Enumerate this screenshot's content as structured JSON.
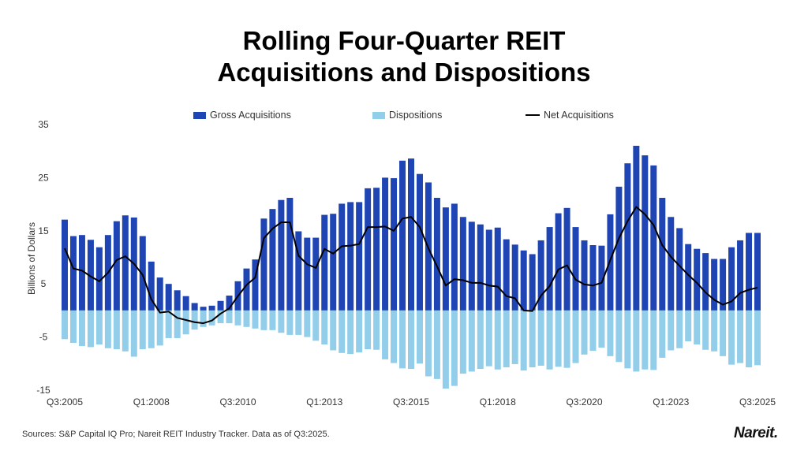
{
  "chart_data": {
    "type": "bar",
    "title_line1": "Rolling Four-Quarter REIT",
    "title_line2": "Acquisitions and Dispositions",
    "ylabel": "Billions of Dollars",
    "ylim": [
      -15,
      35
    ],
    "y_ticks": [
      35,
      25,
      15,
      5,
      -5,
      -15
    ],
    "x_tick_labels": [
      "Q3:2005",
      "Q1:2008",
      "Q3:2010",
      "Q1:2013",
      "Q3:2015",
      "Q1:2018",
      "Q3:2020",
      "Q1:2023",
      "Q3:2025"
    ],
    "x_first": "Q3:2005",
    "x_last": "Q3:2025",
    "frequency": "quarterly",
    "legend_position": "top",
    "grid": false,
    "series": [
      {
        "name": "Gross Acquisitions",
        "kind": "bar",
        "color": "#1f45b4",
        "values": [
          17.1,
          14.0,
          14.2,
          13.3,
          11.9,
          14.2,
          16.8,
          17.9,
          17.5,
          14.0,
          9.2,
          6.2,
          5.0,
          3.8,
          2.7,
          1.4,
          0.7,
          0.9,
          1.8,
          2.8,
          5.5,
          7.9,
          9.6,
          17.3,
          19.1,
          20.8,
          21.2,
          14.9,
          13.7,
          13.7,
          18.0,
          18.2,
          20.1,
          20.4,
          20.4,
          23.0,
          23.1,
          25.0,
          24.9,
          28.2,
          28.6,
          25.7,
          24.1,
          21.2,
          19.4,
          20.1,
          17.6,
          16.7,
          16.2,
          15.2,
          15.6,
          13.4,
          12.4,
          11.3,
          10.6,
          13.2,
          15.7,
          18.3,
          19.3,
          15.7,
          13.2,
          12.3,
          12.2,
          18.1,
          23.3,
          27.7,
          31.0,
          29.2,
          27.3,
          21.2,
          17.6,
          15.5,
          12.5,
          11.6,
          10.8,
          9.7,
          9.7,
          11.9,
          13.2,
          14.6,
          14.6
        ]
      },
      {
        "name": "Dispositions",
        "kind": "bar",
        "color": "#92cde9",
        "values": [
          -5.4,
          -6.1,
          -6.7,
          -6.9,
          -6.4,
          -7.1,
          -7.3,
          -7.7,
          -8.7,
          -7.3,
          -7.1,
          -6.6,
          -5.2,
          -5.2,
          -4.5,
          -3.6,
          -3.1,
          -2.8,
          -2.4,
          -2.4,
          -2.8,
          -3.1,
          -3.4,
          -3.7,
          -3.7,
          -4.2,
          -4.6,
          -4.6,
          -5.0,
          -5.7,
          -6.4,
          -7.5,
          -8.0,
          -8.2,
          -7.9,
          -7.3,
          -7.4,
          -9.2,
          -9.9,
          -10.9,
          -11.0,
          -10.0,
          -12.4,
          -12.9,
          -14.7,
          -14.2,
          -11.9,
          -11.5,
          -11.0,
          -10.5,
          -11.1,
          -10.7,
          -10.1,
          -11.3,
          -10.7,
          -10.4,
          -11.1,
          -10.6,
          -10.8,
          -9.9,
          -8.3,
          -7.6,
          -7.0,
          -8.6,
          -9.7,
          -10.9,
          -11.5,
          -11.1,
          -11.2,
          -8.9,
          -7.5,
          -7.1,
          -5.8,
          -6.4,
          -7.4,
          -7.7,
          -8.6,
          -10.2,
          -9.9,
          -10.7,
          -10.3
        ]
      },
      {
        "name": "Net Acquisitions",
        "kind": "line",
        "color": "#000000",
        "values": [
          11.7,
          7.9,
          7.5,
          6.4,
          5.5,
          7.1,
          9.5,
          10.2,
          8.8,
          6.7,
          2.1,
          -0.4,
          -0.2,
          -1.4,
          -1.8,
          -2.2,
          -2.4,
          -1.9,
          -0.6,
          0.4,
          2.7,
          4.8,
          6.2,
          13.6,
          15.4,
          16.6,
          16.6,
          10.3,
          8.7,
          8.0,
          11.6,
          10.7,
          12.1,
          12.2,
          12.5,
          15.7,
          15.7,
          15.8,
          15.0,
          17.3,
          17.6,
          15.7,
          11.7,
          8.3,
          4.7,
          5.9,
          5.7,
          5.2,
          5.2,
          4.7,
          4.5,
          2.7,
          2.3,
          0.0,
          -0.1,
          2.8,
          4.6,
          7.7,
          8.5,
          5.8,
          4.9,
          4.7,
          5.2,
          9.5,
          13.6,
          16.8,
          19.5,
          18.1,
          16.1,
          12.3,
          10.1,
          8.4,
          6.7,
          5.2,
          3.4,
          2.0,
          1.1,
          1.7,
          3.3,
          3.9,
          4.3
        ]
      }
    ]
  },
  "footer": {
    "source": "Sources: S&P Capital IQ Pro; Nareit REIT Industry Tracker. Data as of Q3:2025.",
    "logo_text": "Nareit."
  }
}
